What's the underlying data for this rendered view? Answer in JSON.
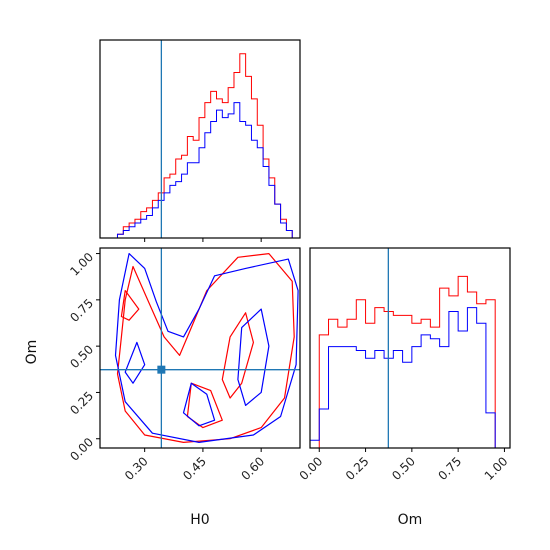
{
  "chart_data": {
    "type": "corner",
    "parameters": [
      "H0",
      "Om"
    ],
    "truth": {
      "H0": 0.343,
      "Om": 0.373
    },
    "colors": {
      "truth": "#1f77b4",
      "red": "#ff0000",
      "blue": "#0000ff"
    },
    "ranges": {
      "H0": [
        0.185,
        0.7
      ],
      "Om": [
        -0.05,
        1.03
      ]
    },
    "ticks": {
      "H0": [
        "0.30",
        "0.45",
        "0.60"
      ],
      "Om_y": [
        "0.00",
        "0.25",
        "0.50",
        "0.75",
        "1.00"
      ],
      "Om_x": [
        "0.00",
        "0.25",
        "0.50",
        "0.75",
        "1.00"
      ]
    },
    "axis_labels": {
      "bottom_left": "H0",
      "bottom_right": "Om",
      "left": "Om"
    },
    "hist_H0": {
      "x_edges": [
        0.23,
        0.245,
        0.26,
        0.275,
        0.29,
        0.305,
        0.32,
        0.335,
        0.35,
        0.365,
        0.38,
        0.395,
        0.41,
        0.425,
        0.44,
        0.455,
        0.47,
        0.485,
        0.5,
        0.515,
        0.53,
        0.545,
        0.56,
        0.575,
        0.59,
        0.605,
        0.62,
        0.635,
        0.65,
        0.665,
        0.68,
        0.695
      ],
      "red": [
        0.02,
        0.06,
        0.08,
        0.1,
        0.14,
        0.16,
        0.2,
        0.24,
        0.32,
        0.34,
        0.42,
        0.44,
        0.54,
        0.52,
        0.64,
        0.72,
        0.78,
        0.74,
        0.72,
        0.8,
        0.88,
        0.98,
        0.86,
        0.74,
        0.6,
        0.42,
        0.32,
        0.18,
        0.1,
        0.04,
        0.0
      ],
      "blue": [
        0.02,
        0.04,
        0.06,
        0.08,
        0.1,
        0.12,
        0.16,
        0.2,
        0.24,
        0.28,
        0.3,
        0.34,
        0.4,
        0.4,
        0.48,
        0.56,
        0.62,
        0.68,
        0.64,
        0.66,
        0.72,
        0.62,
        0.6,
        0.52,
        0.48,
        0.38,
        0.28,
        0.18,
        0.08,
        0.04,
        0.0
      ]
    },
    "hist_Om": {
      "x_edges": [
        -0.05,
        0.0,
        0.05,
        0.1,
        0.15,
        0.2,
        0.25,
        0.3,
        0.35,
        0.4,
        0.45,
        0.5,
        0.55,
        0.6,
        0.65,
        0.7,
        0.75,
        0.8,
        0.85,
        0.9,
        0.95,
        1.0
      ],
      "red": [
        0.0,
        0.58,
        0.66,
        0.62,
        0.66,
        0.76,
        0.64,
        0.72,
        0.7,
        0.68,
        0.68,
        0.64,
        0.66,
        0.62,
        0.82,
        0.78,
        0.88,
        0.8,
        0.74,
        0.76,
        0.0
      ],
      "blue": [
        0.04,
        0.2,
        0.52,
        0.52,
        0.52,
        0.5,
        0.46,
        0.5,
        0.46,
        0.5,
        0.44,
        0.52,
        0.58,
        0.56,
        0.52,
        0.7,
        0.6,
        0.72,
        0.64,
        0.18,
        0.0
      ]
    },
    "contours": {
      "red": [
        [
          [
            0.27,
            0.93
          ],
          [
            0.25,
            0.75
          ],
          [
            0.24,
            0.55
          ],
          [
            0.23,
            0.35
          ],
          [
            0.25,
            0.15
          ],
          [
            0.3,
            0.02
          ],
          [
            0.4,
            -0.02
          ],
          [
            0.52,
            0.0
          ],
          [
            0.6,
            0.06
          ],
          [
            0.66,
            0.22
          ],
          [
            0.685,
            0.55
          ],
          [
            0.68,
            0.85
          ],
          [
            0.62,
            1.0
          ],
          [
            0.54,
            0.98
          ],
          [
            0.46,
            0.8
          ],
          [
            0.42,
            0.6
          ],
          [
            0.39,
            0.45
          ],
          [
            0.35,
            0.55
          ],
          [
            0.31,
            0.74
          ],
          [
            0.27,
            0.93
          ]
        ],
        [
          [
            0.25,
            0.8
          ],
          [
            0.285,
            0.7
          ],
          [
            0.26,
            0.64
          ],
          [
            0.24,
            0.66
          ],
          [
            0.25,
            0.8
          ]
        ],
        [
          [
            0.42,
            0.3
          ],
          [
            0.47,
            0.26
          ],
          [
            0.5,
            0.1
          ],
          [
            0.45,
            0.06
          ],
          [
            0.41,
            0.12
          ],
          [
            0.42,
            0.3
          ]
        ],
        [
          [
            0.52,
            0.55
          ],
          [
            0.56,
            0.68
          ],
          [
            0.58,
            0.52
          ],
          [
            0.55,
            0.3
          ],
          [
            0.52,
            0.22
          ],
          [
            0.5,
            0.32
          ],
          [
            0.52,
            0.55
          ]
        ]
      ],
      "blue": [
        [
          [
            0.26,
            1.0
          ],
          [
            0.235,
            0.75
          ],
          [
            0.225,
            0.45
          ],
          [
            0.25,
            0.2
          ],
          [
            0.32,
            0.03
          ],
          [
            0.44,
            -0.02
          ],
          [
            0.58,
            0.02
          ],
          [
            0.65,
            0.12
          ],
          [
            0.69,
            0.4
          ],
          [
            0.695,
            0.8
          ],
          [
            0.67,
            0.97
          ],
          [
            0.56,
            0.92
          ],
          [
            0.48,
            0.88
          ],
          [
            0.44,
            0.7
          ],
          [
            0.4,
            0.55
          ],
          [
            0.36,
            0.58
          ],
          [
            0.33,
            0.74
          ],
          [
            0.3,
            0.92
          ],
          [
            0.26,
            1.0
          ]
        ],
        [
          [
            0.28,
            0.52
          ],
          [
            0.3,
            0.4
          ],
          [
            0.27,
            0.3
          ],
          [
            0.25,
            0.36
          ],
          [
            0.28,
            0.52
          ]
        ],
        [
          [
            0.42,
            0.3
          ],
          [
            0.46,
            0.24
          ],
          [
            0.48,
            0.1
          ],
          [
            0.44,
            0.07
          ],
          [
            0.4,
            0.14
          ],
          [
            0.42,
            0.3
          ]
        ],
        [
          [
            0.55,
            0.6
          ],
          [
            0.6,
            0.7
          ],
          [
            0.62,
            0.5
          ],
          [
            0.6,
            0.25
          ],
          [
            0.56,
            0.18
          ],
          [
            0.54,
            0.32
          ],
          [
            0.55,
            0.6
          ]
        ]
      ]
    }
  }
}
